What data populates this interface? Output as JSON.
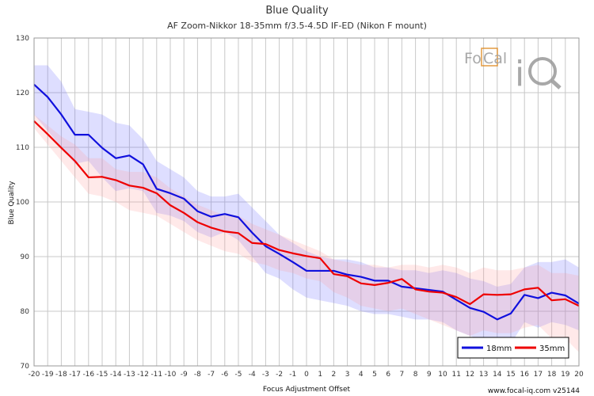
{
  "chart_data": {
    "type": "line",
    "title": "Blue Quality",
    "subtitle": "AF Zoom-Nikkor 18-35mm f/3.5-4.5D IF-ED (Nikon F mount)",
    "xlabel": "Focus Adjustment Offset",
    "ylabel": "Blue Quality",
    "xlim": [
      -20,
      20
    ],
    "ylim": [
      70,
      130
    ],
    "x": [
      -20,
      -19,
      -18,
      -17,
      -16,
      -15,
      -14,
      -13,
      -12,
      -11,
      -10,
      -9,
      -8,
      -7,
      -6,
      -5,
      -4,
      -3,
      -2,
      -1,
      0,
      1,
      2,
      3,
      4,
      5,
      6,
      7,
      8,
      9,
      10,
      11,
      12,
      13,
      14,
      15,
      16,
      17,
      18,
      19,
      20
    ],
    "x_ticks": [
      -20,
      -19,
      -18,
      -17,
      -16,
      -15,
      -14,
      -13,
      -12,
      -11,
      -10,
      -9,
      -8,
      -7,
      -6,
      -5,
      -4,
      -3,
      -2,
      -1,
      0,
      1,
      2,
      3,
      4,
      5,
      6,
      7,
      8,
      9,
      10,
      11,
      12,
      13,
      14,
      15,
      16,
      17,
      18,
      19,
      20
    ],
    "y_ticks": [
      70,
      80,
      90,
      100,
      110,
      120,
      130
    ],
    "grid": true,
    "legend_position": "bottom-right",
    "series": [
      {
        "name": "18mm",
        "color": "#1010dd",
        "band_color": "#6a6aff",
        "values": [
          121.5,
          119.2,
          116.0,
          112.3,
          112.3,
          109.9,
          108.0,
          108.5,
          106.9,
          102.4,
          101.6,
          100.6,
          98.3,
          97.3,
          97.8,
          97.2,
          94.4,
          91.9,
          90.5,
          89.0,
          87.4,
          87.4,
          87.4,
          86.7,
          86.3,
          85.6,
          85.6,
          84.5,
          84.2,
          83.9,
          83.6,
          82.1,
          80.6,
          79.9,
          78.5,
          79.6,
          83.0,
          82.4,
          83.4,
          82.9,
          81.4
        ],
        "upper": [
          125.0,
          125.0,
          122.0,
          117.0,
          116.5,
          116.0,
          114.5,
          114.0,
          111.5,
          107.5,
          106.0,
          104.5,
          102.0,
          101.0,
          101.0,
          101.5,
          99.0,
          96.5,
          94.0,
          92.5,
          91.0,
          90.0,
          89.5,
          89.5,
          89.0,
          88.0,
          88.0,
          87.5,
          87.5,
          87.0,
          87.5,
          87.0,
          86.0,
          85.5,
          84.5,
          85.0,
          88.0,
          89.0,
          89.0,
          89.5,
          88.0
        ],
        "lower": [
          116.0,
          113.0,
          110.0,
          107.0,
          107.5,
          104.5,
          102.0,
          102.5,
          102.0,
          98.0,
          97.5,
          96.5,
          94.5,
          93.5,
          94.5,
          93.0,
          90.0,
          87.0,
          86.0,
          84.0,
          82.5,
          82.0,
          81.5,
          81.0,
          80.0,
          79.5,
          79.5,
          79.0,
          78.5,
          78.5,
          78.0,
          76.5,
          75.5,
          74.5,
          73.0,
          74.0,
          78.0,
          77.0,
          78.0,
          77.5,
          76.5
        ]
      },
      {
        "name": "35mm",
        "color": "#ee0000",
        "band_color": "#ff9a9a",
        "values": [
          114.8,
          112.4,
          109.9,
          107.5,
          104.5,
          104.6,
          104.0,
          103.0,
          102.6,
          101.6,
          99.4,
          98.0,
          96.3,
          95.3,
          94.6,
          94.3,
          92.5,
          92.3,
          91.2,
          90.6,
          90.1,
          89.7,
          86.8,
          86.4,
          85.1,
          84.8,
          85.2,
          85.9,
          84.0,
          83.6,
          83.4,
          82.6,
          81.3,
          83.1,
          83.0,
          83.1,
          84.0,
          84.3,
          82.0,
          82.2,
          81.0
        ],
        "upper": [
          116.0,
          114.0,
          112.0,
          110.5,
          108.0,
          108.0,
          106.0,
          105.5,
          105.5,
          104.5,
          102.5,
          101.0,
          99.5,
          98.5,
          97.5,
          97.5,
          96.0,
          95.0,
          94.0,
          93.0,
          92.0,
          91.0,
          89.5,
          89.0,
          88.5,
          88.5,
          88.0,
          88.5,
          88.5,
          88.0,
          88.5,
          88.0,
          87.0,
          88.0,
          87.5,
          87.5,
          88.0,
          88.5,
          87.0,
          87.0,
          86.5
        ],
        "lower": [
          113.5,
          110.5,
          107.5,
          104.5,
          101.5,
          101.0,
          100.0,
          98.5,
          98.0,
          97.5,
          96.0,
          94.5,
          93.0,
          92.0,
          91.0,
          90.5,
          89.0,
          88.5,
          87.5,
          87.0,
          86.0,
          85.5,
          83.5,
          82.5,
          81.0,
          80.5,
          80.0,
          80.5,
          79.5,
          78.5,
          77.5,
          76.5,
          75.5,
          76.5,
          76.0,
          76.0,
          77.0,
          77.5,
          75.0,
          75.0,
          72.5
        ]
      }
    ]
  },
  "logo": {
    "text": "FoCal iQ"
  },
  "footer": {
    "text": "www.focal-iq.com  v25144"
  }
}
